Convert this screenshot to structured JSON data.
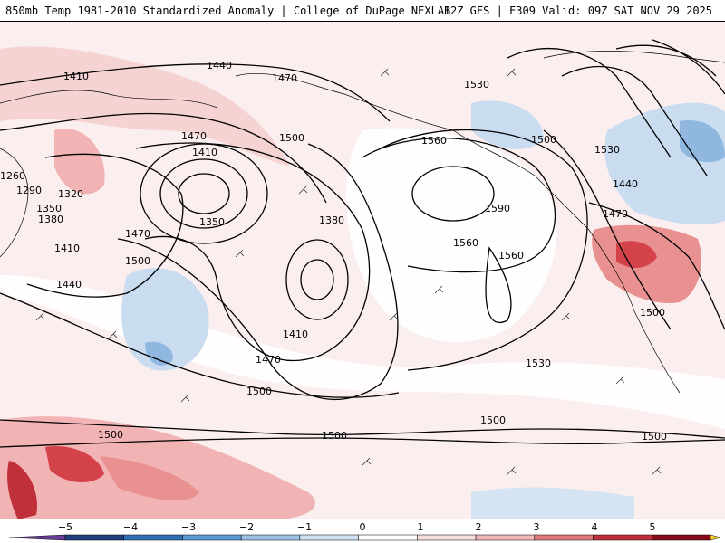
{
  "header": {
    "title_left": "850mb Temp 1981-2010 Standardized Anomaly | College of DuPage NEXLAB",
    "title_right": "12Z GFS | F309 Valid: 09Z SAT NOV 29 2025"
  },
  "map": {
    "contour_labels": [
      {
        "text": "1410"
      },
      {
        "text": "1440"
      },
      {
        "text": "1470"
      },
      {
        "text": "1530"
      },
      {
        "text": "1470"
      },
      {
        "text": "1410"
      },
      {
        "text": "1500"
      },
      {
        "text": "1560"
      },
      {
        "text": "1500"
      },
      {
        "text": "1530"
      },
      {
        "text": "1260"
      },
      {
        "text": "1290"
      },
      {
        "text": "1320"
      },
      {
        "text": "1350"
      },
      {
        "text": "1380"
      },
      {
        "text": "1350"
      },
      {
        "text": "1380"
      },
      {
        "text": "1590"
      },
      {
        "text": "1440"
      },
      {
        "text": "1470"
      },
      {
        "text": "1410"
      },
      {
        "text": "1470"
      },
      {
        "text": "1560"
      },
      {
        "text": "1500"
      },
      {
        "text": "1560"
      },
      {
        "text": "1440"
      },
      {
        "text": "1410"
      },
      {
        "text": "1470"
      },
      {
        "text": "1500"
      },
      {
        "text": "1530"
      },
      {
        "text": "1500"
      },
      {
        "text": "1500"
      },
      {
        "text": "1500"
      },
      {
        "text": "1500"
      },
      {
        "text": "1500"
      }
    ]
  },
  "legend": {
    "ticks": [
      "−5",
      "−4",
      "−3",
      "−2",
      "−1",
      "0",
      "1",
      "2",
      "3",
      "4",
      "5"
    ],
    "colors": [
      "#6a3d9a",
      "#1f3f7f",
      "#2f6fb5",
      "#5b9bd5",
      "#9cc3e6",
      "#cfe0f3",
      "#ffffff",
      "#f7dede",
      "#f0b7b7",
      "#e07a7a",
      "#c0303a",
      "#8b0a1a",
      "#f2d024"
    ]
  }
}
